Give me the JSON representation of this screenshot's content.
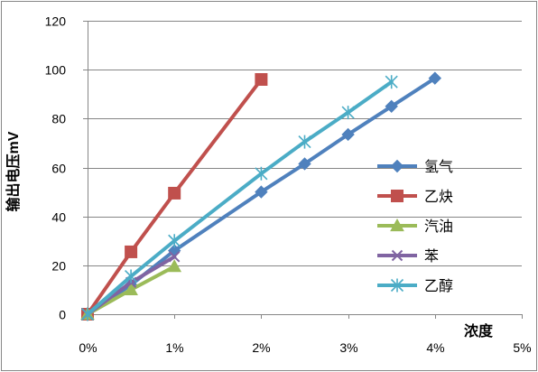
{
  "chart_data": {
    "type": "line",
    "xlabel": "浓度",
    "ylabel": "输出电压mV",
    "xlim": [
      0,
      5
    ],
    "ylim": [
      0,
      120
    ],
    "x_ticks": [
      {
        "value": 0,
        "label": "0%"
      },
      {
        "value": 1,
        "label": "1%"
      },
      {
        "value": 2,
        "label": "2%"
      },
      {
        "value": 3,
        "label": "3%"
      },
      {
        "value": 4,
        "label": "4%"
      },
      {
        "value": 5,
        "label": "5%"
      }
    ],
    "y_ticks": [
      {
        "value": 0,
        "label": "0"
      },
      {
        "value": 20,
        "label": "20"
      },
      {
        "value": 40,
        "label": "40"
      },
      {
        "value": 60,
        "label": "60"
      },
      {
        "value": 80,
        "label": "80"
      },
      {
        "value": 100,
        "label": "100"
      },
      {
        "value": 120,
        "label": "120"
      }
    ],
    "grid": {
      "horizontal": true,
      "vertical": false
    },
    "legend_position": "right",
    "series": [
      {
        "name": "氢气",
        "color": "#4F81BD",
        "marker": "diamond",
        "points": [
          [
            0,
            0
          ],
          [
            0.5,
            12
          ],
          [
            1,
            26
          ],
          [
            2,
            50
          ],
          [
            2.5,
            61.5
          ],
          [
            3,
            73.5
          ],
          [
            3.5,
            85
          ],
          [
            4,
            96.5
          ]
        ]
      },
      {
        "name": "乙炔",
        "color": "#C0504D",
        "marker": "square",
        "points": [
          [
            0,
            0
          ],
          [
            0.5,
            25.5
          ],
          [
            1,
            49.5
          ],
          [
            2,
            96
          ]
        ]
      },
      {
        "name": "汽油",
        "color": "#9BBB59",
        "marker": "triangle",
        "points": [
          [
            0,
            0
          ],
          [
            0.5,
            10
          ],
          [
            1,
            19.5
          ]
        ]
      },
      {
        "name": "苯",
        "color": "#8064A2",
        "marker": "x",
        "points": [
          [
            0,
            0
          ],
          [
            0.5,
            13
          ],
          [
            1,
            23.5
          ]
        ]
      },
      {
        "name": "乙醇",
        "color": "#4BACC6",
        "marker": "asterisk",
        "points": [
          [
            0,
            0
          ],
          [
            0.5,
            15.5
          ],
          [
            1,
            30
          ],
          [
            2,
            57.5
          ],
          [
            2.5,
            70.5
          ],
          [
            3,
            82.5
          ],
          [
            3.5,
            95
          ]
        ]
      }
    ]
  }
}
